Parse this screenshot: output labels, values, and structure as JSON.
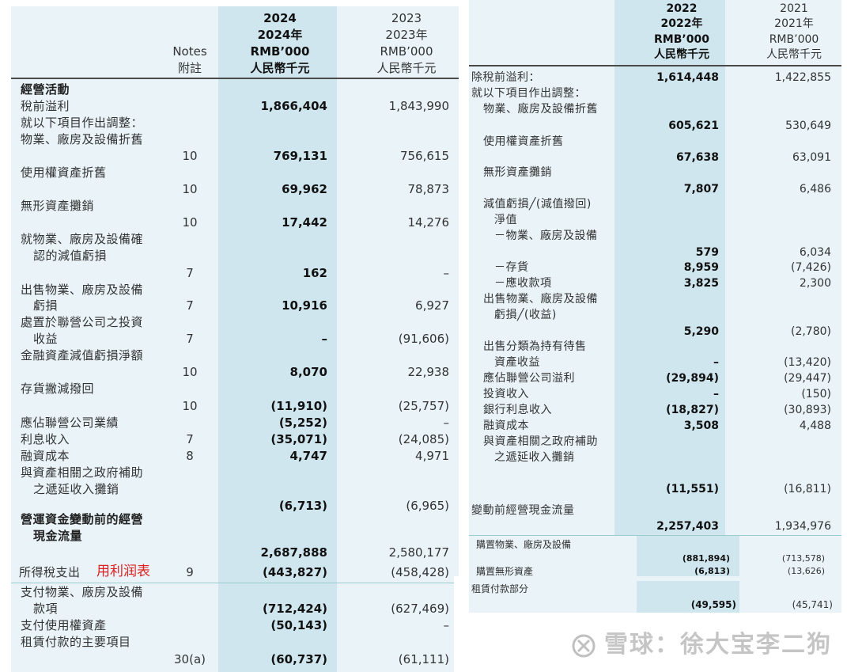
{
  "left": {
    "header": {
      "notes_en": "Notes",
      "notes_zh": "附註",
      "col1_year": "2024",
      "col1_year_zh": "2024年",
      "col1_unit": "RMB’000",
      "col1_unit_zh": "人民幣千元",
      "col2_year": "2023",
      "col2_year_zh": "2023年",
      "col2_unit": "RMB’000",
      "col2_unit_zh": "人民幣千元"
    },
    "section_title": "經營活動",
    "rows": [
      {
        "label": "稅前溢利",
        "note": "",
        "v2024": "1,866,404",
        "v2023": "1,843,990"
      },
      {
        "label": "就以下項目作出調整：",
        "note": "",
        "v2024": "",
        "v2023": ""
      },
      {
        "label": "物業、廠房及設備折舊",
        "note": "10",
        "v2024": "769,131",
        "v2023": "756,615"
      },
      {
        "label": "使用權資產折舊",
        "note": "10",
        "v2024": "69,962",
        "v2023": "78,873"
      },
      {
        "label": "無形資產攤銷",
        "note": "10",
        "v2024": "17,442",
        "v2023": "14,276"
      },
      {
        "label": "就物業、廠房及設備確",
        "label2": "認的減值虧損",
        "note": "7",
        "v2024": "162",
        "v2023": "–"
      },
      {
        "label": "出售物業、廠房及設備",
        "label2": "虧損",
        "note": "7",
        "v2024": "10,916",
        "v2023": "6,927"
      },
      {
        "label": "處置於聯營公司之投資",
        "label2": "收益",
        "note": "7",
        "v2024": "–",
        "v2023": "(91,606)"
      },
      {
        "label": "金融資產減值虧損淨額",
        "note": "10",
        "v2024": "8,070",
        "v2023": "22,938"
      },
      {
        "label": "存貨撇減撥回",
        "note": "10",
        "v2024": "(11,910)",
        "v2023": "(25,757)"
      },
      {
        "label": "應佔聯營公司業績",
        "note": "",
        "v2024": "(5,252)",
        "v2023": "–"
      },
      {
        "label": "利息收入",
        "note": "7",
        "v2024": "(35,071)",
        "v2023": "(24,085)"
      },
      {
        "label": "融資成本",
        "note": "8",
        "v2024": "4,747",
        "v2023": "4,971"
      },
      {
        "label": "與資產相關之政府補助",
        "label2": "之遞延收入攤銷",
        "note": "",
        "v2024": "(6,713)",
        "v2023": "(6,965)"
      },
      {
        "label": "營運資金變動前的經營",
        "label2": "現金流量",
        "note": "",
        "v2024": "2,687,888",
        "v2023": "2,580,177"
      }
    ],
    "bottom": [
      {
        "label": "所得稅支出",
        "annotation": "用利润表",
        "note": "9",
        "v2024": "(443,827)",
        "v2023": "(458,428)"
      },
      {
        "label": "支付物業、廠房及設備",
        "label2": "款項",
        "note": "",
        "v2024": "(712,424)",
        "v2023": "(627,469)"
      },
      {
        "label": "支付使用權資產",
        "note": "",
        "v2024": "(50,143)",
        "v2023": "–"
      },
      {
        "label": "租賃付款的主要項目",
        "note": "30(a)",
        "v2024": "(60,737)",
        "v2023": "(61,111)"
      }
    ]
  },
  "right": {
    "header": {
      "col1_year": "2022",
      "col1_year_zh": "2022年",
      "col1_unit": "RMB’000",
      "col1_unit_zh": "人民幣千元",
      "col2_year": "2021",
      "col2_year_zh": "2021年",
      "col2_unit": "RMB’000",
      "col2_unit_zh": "人民幣千元"
    },
    "rows": [
      {
        "label": "除稅前溢利：",
        "v2022": "1,614,448",
        "v2021": "1,422,855"
      },
      {
        "label": "就以下項目作出調整：",
        "v2022": "",
        "v2021": ""
      },
      {
        "label": "物業、廠房及設備折舊",
        "v2022": "605,621",
        "v2021": "530,649"
      },
      {
        "label": "使用權資產折舊",
        "v2022": "67,638",
        "v2021": "63,091"
      },
      {
        "label": "無形資產攤銷",
        "v2022": "7,807",
        "v2021": "6,486"
      },
      {
        "label": "減值虧損╱(減值撥回)",
        "v2022": "",
        "v2021": ""
      },
      {
        "label": "淨值",
        "v2022": "",
        "v2021": ""
      },
      {
        "label": "－物業、廠房及設備",
        "v2022": "579",
        "v2021": "6,034"
      },
      {
        "label": "－存貨",
        "v2022": "8,959",
        "v2021": "(7,426)"
      },
      {
        "label": "－應收款項",
        "v2022": "3,825",
        "v2021": "2,300"
      },
      {
        "label": "出售物業、廠房及設備",
        "label2": "虧損╱(收益)",
        "v2022": "5,290",
        "v2021": "(2,780)"
      },
      {
        "label": "出售分類為持有待售",
        "label2": "資產收益",
        "v2022": "–",
        "v2021": "(13,420)"
      },
      {
        "label": "應佔聯營公司溢利",
        "v2022": "(29,894)",
        "v2021": "(29,447)"
      },
      {
        "label": "投資收入",
        "v2022": "–",
        "v2021": "(150)"
      },
      {
        "label": "銀行利息收入",
        "v2022": "(18,827)",
        "v2021": "(30,893)"
      },
      {
        "label": "融資成本",
        "v2022": "3,508",
        "v2021": "4,488"
      },
      {
        "label": "與資產相關之政府補助",
        "label2": "之遞延收入攤銷",
        "v2022": "(11,551)",
        "v2021": "(16,811)"
      },
      {
        "label": "變動前經營現金流量",
        "v2022": "2,257,403",
        "v2021": "1,934,976"
      }
    ],
    "bottom": [
      {
        "label": "購置物業、廠房及設備",
        "v2022": "(881,894)",
        "v2021": "(713,578)"
      },
      {
        "label": "購置無形資產",
        "v2022": "(6,813)",
        "v2021": "(13,626)"
      },
      {
        "label": "租賃付款部分",
        "v2022": "(49,595)",
        "v2021": "(45,741)"
      }
    ]
  },
  "watermark": "雪球：徐大宝李二狗"
}
